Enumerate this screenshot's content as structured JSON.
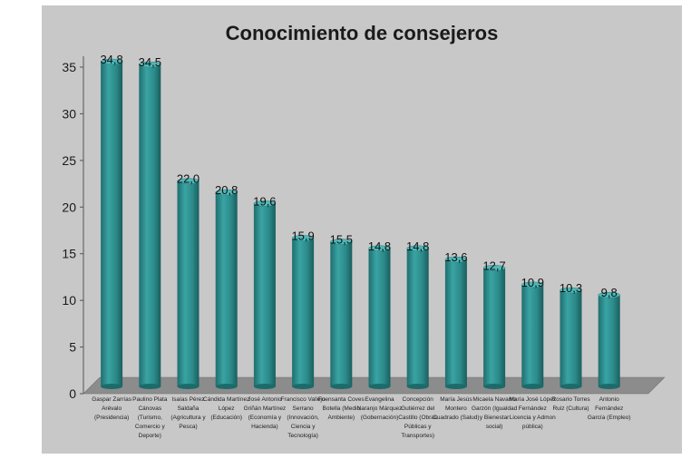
{
  "chart_data": {
    "type": "bar",
    "title": "Conocimiento de consejeros",
    "xlabel": "",
    "ylabel": "",
    "ylim": [
      0,
      35
    ],
    "yticks": [
      0,
      5,
      10,
      15,
      20,
      25,
      30,
      35
    ],
    "grid": false,
    "legend": "none",
    "bar_color": "#2e8b8b",
    "categories": [
      "Gaspar Zarrías Arévalo (Presidencia)",
      "Paulino Plata Cánovas (Turismo, Comercio y Deporte)",
      "Isaías Pérez Saldaña (Agricultura y Pesca)",
      "Cándida Martínez López (Educación)",
      "José Antonio Griñán Martínez (Economía y Hacienda)",
      "Francisco Vallejo Serrano (Innovación, Ciencia y Tecnología)",
      "Fuensanta Coves Botella (Medio Ambiente)",
      "Evangelina Naranjo Márquez (Gobernación)",
      "Concepción Gutiérrez del Castillo (Obras Públicas y Transportes)",
      "María Jesús Montero Cuadrado (Salud)",
      "Micaela Navarro Garzón (Igualdad y Bienestar social)",
      "María José López Fernández Licencia y Admon pública)",
      "Rosario Torres Ruiz (Cultura)",
      "Antonio Fernández García (Empleo)"
    ],
    "values": [
      34.8,
      34.5,
      22.0,
      20.8,
      19.6,
      15.9,
      15.5,
      14.8,
      14.8,
      13.6,
      12.7,
      10.9,
      10.3,
      9.8
    ],
    "data_labels": [
      "34,8",
      "34,5",
      "22,0",
      "20,8",
      "19,6",
      "15,9",
      "15,5",
      "14,8",
      "14,8",
      "13,6",
      "12,7",
      "10,9",
      "10,3",
      "9,8"
    ]
  }
}
